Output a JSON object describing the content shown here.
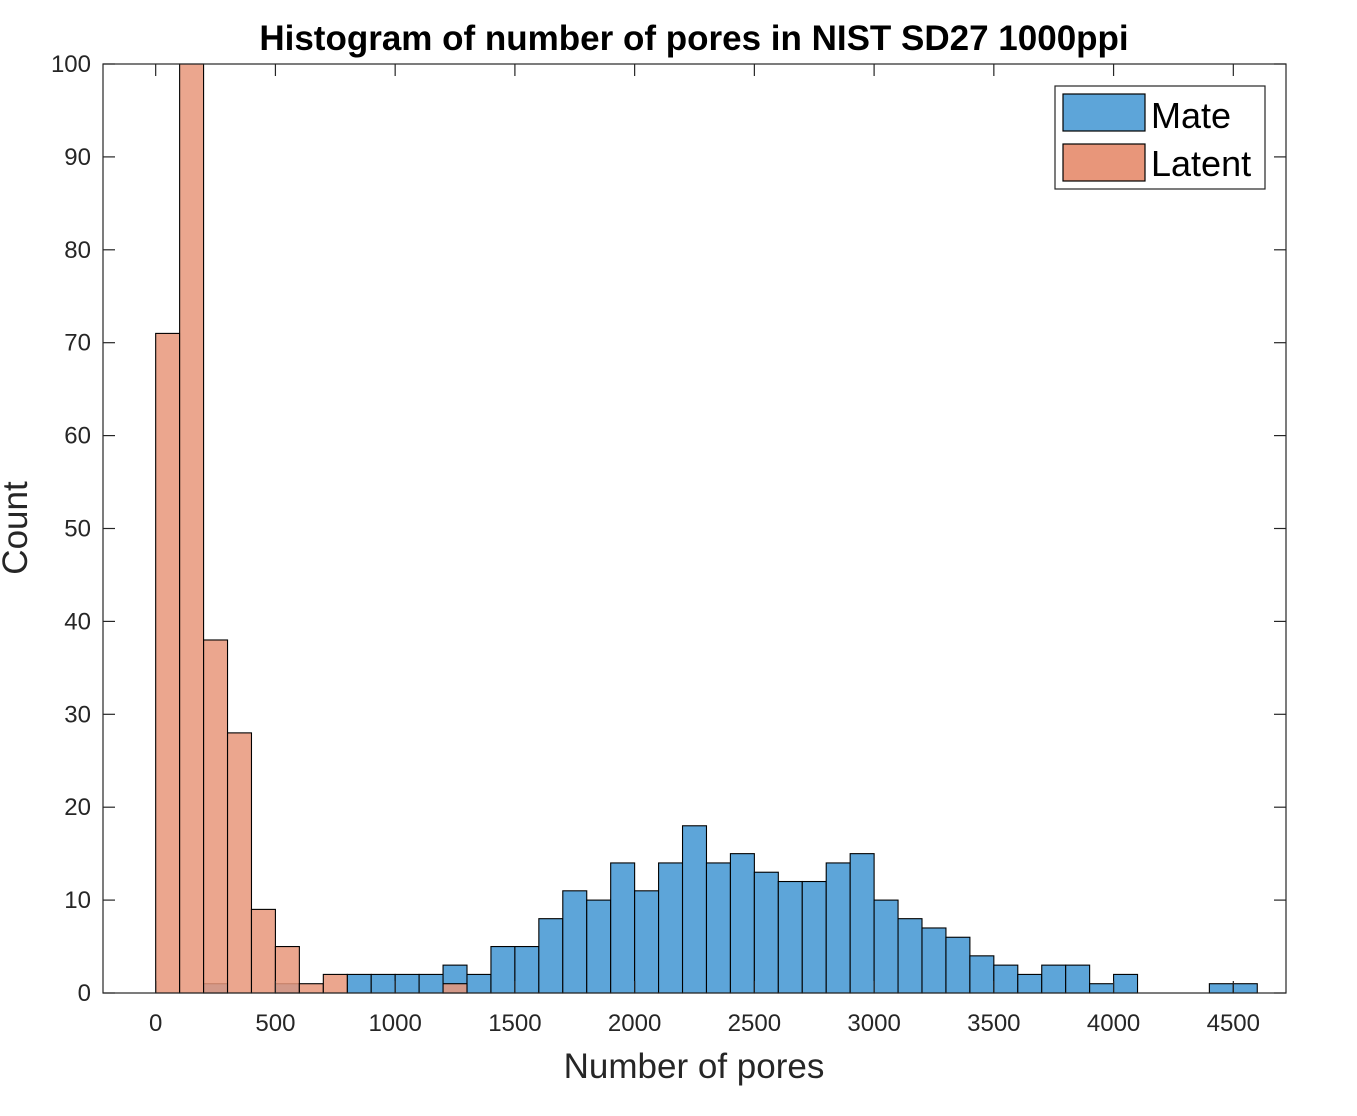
{
  "chart_data": {
    "type": "bar",
    "title": "Histogram of number of pores in NIST SD27 1000ppi",
    "xlabel": "Number of pores",
    "ylabel": "Count",
    "xlim": [
      -220,
      4720
    ],
    "ylim": [
      0,
      100
    ],
    "xticks": [
      0,
      500,
      1000,
      1500,
      2000,
      2500,
      3000,
      3500,
      4000,
      4500
    ],
    "yticks": [
      0,
      10,
      20,
      30,
      40,
      50,
      60,
      70,
      80,
      90,
      100
    ],
    "bin_width": 100,
    "bin_start": 0,
    "grid": false,
    "legend_position": "top-right",
    "series": [
      {
        "name": "Mate",
        "color": "#5DA5D9",
        "values": [
          0,
          0,
          1,
          0,
          0,
          1,
          0,
          0,
          2,
          2,
          2,
          2,
          3,
          2,
          5,
          5,
          8,
          11,
          10,
          14,
          11,
          14,
          18,
          14,
          15,
          13,
          12,
          12,
          14,
          15,
          10,
          8,
          7,
          6,
          4,
          3,
          2,
          3,
          3,
          1,
          2,
          0,
          0,
          0,
          1,
          1
        ]
      },
      {
        "name": "Latent",
        "color": "#E8967A",
        "values": [
          71,
          100,
          38,
          28,
          9,
          5,
          1,
          2,
          0,
          0,
          0,
          0,
          1
        ]
      }
    ]
  }
}
